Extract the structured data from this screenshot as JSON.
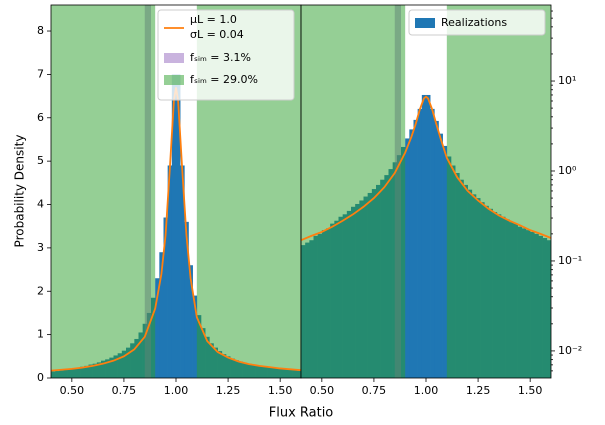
{
  "chart_data": {
    "type": "histogram",
    "xlabel": "Flux Ratio",
    "ylabel": "Probability Density",
    "xlim": [
      0.4,
      1.6
    ],
    "xticks": [
      {
        "value": 0.5,
        "label": "0.50"
      },
      {
        "value": 0.75,
        "label": "0.75"
      },
      {
        "value": 1.0,
        "label": "1.00"
      },
      {
        "value": 1.25,
        "label": "1.25"
      },
      {
        "value": 1.5,
        "label": "1.50"
      }
    ],
    "bins": [
      0.4,
      0.42,
      0.44,
      0.46,
      0.48,
      0.5,
      0.52,
      0.54,
      0.56,
      0.58,
      0.6,
      0.62,
      0.64,
      0.66,
      0.68,
      0.7,
      0.72,
      0.74,
      0.76,
      0.78,
      0.8,
      0.82,
      0.84,
      0.86,
      0.88,
      0.9,
      0.92,
      0.94,
      0.96,
      0.98,
      1.0,
      1.02,
      1.04,
      1.06,
      1.08,
      1.1,
      1.12,
      1.14,
      1.16,
      1.18,
      1.2,
      1.22,
      1.24,
      1.26,
      1.28,
      1.3,
      1.32,
      1.34,
      1.36,
      1.38,
      1.4,
      1.42,
      1.44,
      1.46,
      1.48,
      1.5,
      1.52,
      1.54,
      1.56,
      1.58,
      1.6
    ],
    "series": [
      {
        "name": "Realizations",
        "color": "#1f77b4",
        "values": [
          0.15,
          0.16,
          0.17,
          0.19,
          0.2,
          0.22,
          0.23,
          0.26,
          0.28,
          0.31,
          0.33,
          0.36,
          0.4,
          0.43,
          0.47,
          0.52,
          0.57,
          0.63,
          0.7,
          0.8,
          0.9,
          1.05,
          1.25,
          1.5,
          1.85,
          2.3,
          2.9,
          3.7,
          4.9,
          7.0,
          7.0,
          4.9,
          3.6,
          2.6,
          1.9,
          1.45,
          1.15,
          0.95,
          0.8,
          0.7,
          0.62,
          0.55,
          0.5,
          0.45,
          0.41,
          0.38,
          0.35,
          0.33,
          0.31,
          0.29,
          0.27,
          0.26,
          0.24,
          0.23,
          0.22,
          0.21,
          0.2,
          0.19,
          0.18,
          0.17
        ]
      }
    ],
    "curve": {
      "name": [
        "μL = 1.0",
        "σL = 0.04"
      ],
      "color": "#ff7f0e",
      "x": [
        0.4,
        0.45,
        0.5,
        0.55,
        0.6,
        0.65,
        0.7,
        0.75,
        0.8,
        0.85,
        0.9,
        0.93,
        0.95,
        0.97,
        0.99,
        1.0,
        1.01,
        1.03,
        1.05,
        1.07,
        1.1,
        1.15,
        1.2,
        1.25,
        1.3,
        1.35,
        1.4,
        1.45,
        1.5,
        1.55,
        1.6
      ],
      "y": [
        0.17,
        0.19,
        0.21,
        0.24,
        0.28,
        0.33,
        0.4,
        0.5,
        0.66,
        0.95,
        1.6,
        2.4,
        3.3,
        4.8,
        6.4,
        6.7,
        6.4,
        4.8,
        3.3,
        2.3,
        1.4,
        0.85,
        0.6,
        0.47,
        0.38,
        0.32,
        0.28,
        0.25,
        0.22,
        0.2,
        0.18
      ]
    },
    "regions": [
      {
        "name": "fₛᵢₘ = 3.1%",
        "color": "#9467bd",
        "spans": [
          [
            0.85,
            0.88
          ]
        ]
      },
      {
        "name": "fₛᵢₘ = 29.0%",
        "color": "#2ca02c",
        "spans": [
          [
            0.4,
            0.9
          ],
          [
            1.1,
            1.6
          ]
        ]
      }
    ],
    "panels": [
      {
        "log": false,
        "ylim": [
          0,
          8.6
        ],
        "yticks": [
          0,
          1,
          2,
          3,
          4,
          5,
          6,
          7,
          8
        ],
        "legend": "upper center"
      },
      {
        "log": true,
        "ylim": [
          0.005,
          70
        ],
        "yticks": [
          {
            "value": 0.01,
            "label": "10⁻²"
          },
          {
            "value": 0.1,
            "label": "10⁻¹"
          },
          {
            "value": 1,
            "label": "10⁰"
          },
          {
            "value": 10,
            "label": "10¹"
          }
        ],
        "legend": "upper right"
      }
    ]
  }
}
